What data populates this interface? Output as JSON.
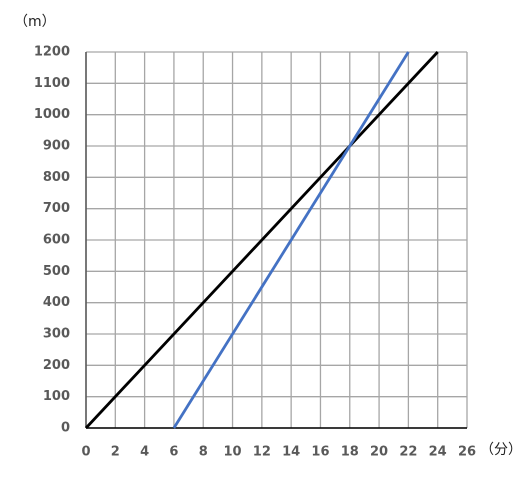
{
  "chart_data": {
    "type": "line",
    "y_label": "（m）",
    "x_label": "（分）",
    "xlim": [
      0,
      26
    ],
    "xticks": [
      0,
      2,
      4,
      6,
      8,
      10,
      12,
      14,
      16,
      18,
      20,
      22,
      24,
      26
    ],
    "ylim": [
      0,
      1200
    ],
    "yticks": [
      0,
      100,
      200,
      300,
      400,
      500,
      600,
      700,
      800,
      900,
      1000,
      1100,
      1200
    ],
    "grid": true,
    "series": [
      {
        "color": "#000000",
        "x": [
          0,
          24
        ],
        "values": [
          0,
          1200
        ]
      },
      {
        "color": "#4472c4",
        "x": [
          6,
          22
        ],
        "values": [
          0,
          1200
        ]
      }
    ]
  }
}
